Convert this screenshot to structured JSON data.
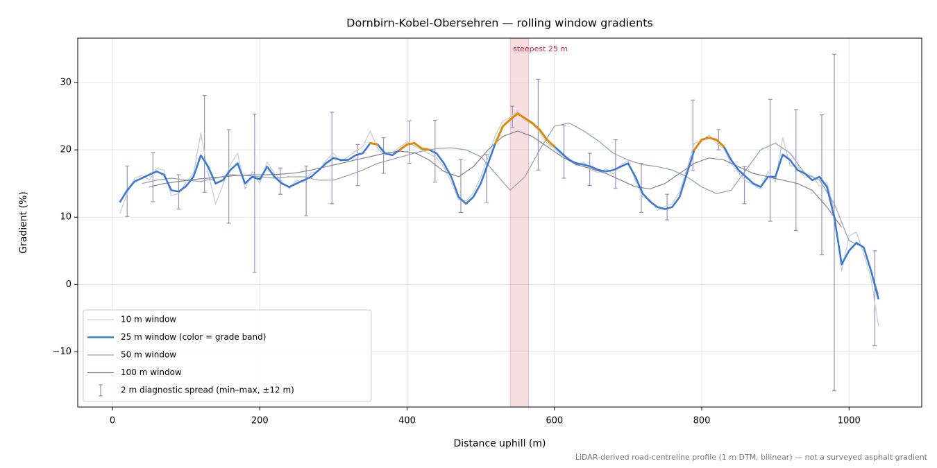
{
  "chart_data": {
    "type": "line",
    "title": "Dornbirn-Kobel-Obersehren — rolling window gradients",
    "xlabel": "Distance uphill (m)",
    "ylabel": "Gradient (%)",
    "footnote": "LiDAR-derived road-centreline profile (1 m DTM, bilinear) — not a surveyed asphalt gradient",
    "xlim": [
      -47.1,
      1098.7
    ],
    "ylim": [
      -18.2,
      36.6
    ],
    "xticks": [
      0,
      200,
      400,
      600,
      800,
      1000
    ],
    "yticks": [
      {
        "value": -10,
        "label": "−10"
      },
      0,
      10,
      20,
      30
    ],
    "grid": true,
    "legend": "lower left",
    "highlight": {
      "label": "steepest 25 m",
      "x": [
        540,
        565
      ],
      "color": "#e07a86"
    },
    "series": [
      {
        "name": "10 m window",
        "color": "#c6cdd6",
        "width": 1.3,
        "x": [
          10,
          20,
          30,
          40,
          50,
          60,
          70,
          80,
          90,
          100,
          110,
          120,
          130,
          140,
          150,
          160,
          170,
          180,
          190,
          200,
          210,
          220,
          230,
          240,
          250,
          260,
          270,
          280,
          290,
          300,
          310,
          320,
          330,
          340,
          350,
          360,
          370,
          380,
          390,
          400,
          410,
          420,
          430,
          440,
          450,
          460,
          470,
          480,
          490,
          500,
          510,
          520,
          530,
          540,
          550,
          560,
          570,
          580,
          590,
          600,
          610,
          620,
          630,
          640,
          650,
          660,
          670,
          680,
          690,
          700,
          710,
          720,
          730,
          740,
          750,
          760,
          770,
          780,
          790,
          800,
          810,
          820,
          830,
          840,
          850,
          860,
          870,
          880,
          890,
          900,
          910,
          920,
          930,
          940,
          950,
          960,
          970,
          980,
          990,
          1000,
          1010,
          1020,
          1030,
          1040
        ],
        "values": [
          10.5,
          13.5,
          15.8,
          16.2,
          15.5,
          17.2,
          17,
          13.2,
          13.5,
          15.2,
          16.5,
          22.5,
          16.5,
          12,
          14.8,
          17.8,
          19.5,
          14.2,
          16.8,
          15,
          18.2,
          16.5,
          15.3,
          14.2,
          15.5,
          15.2,
          16.6,
          16.8,
          18.4,
          19.5,
          18.2,
          19,
          19.8,
          20.5,
          22.8,
          20.2,
          19.2,
          19.6,
          20.4,
          21.2,
          20.6,
          20,
          19.4,
          18.8,
          17.4,
          15.2,
          12.6,
          12.4,
          13.6,
          16,
          19,
          22.2,
          24.3,
          24.8,
          25.8,
          24.4,
          23.8,
          22.6,
          21,
          20.2,
          19.2,
          18.8,
          17.6,
          18.2,
          17,
          16.6,
          17.2,
          16.4,
          17.8,
          18.4,
          15.4,
          13,
          12.6,
          11,
          11.6,
          12,
          13.8,
          17.2,
          21,
          21.4,
          22.2,
          21,
          20.2,
          18,
          16.6,
          15.4,
          14.8,
          14.2,
          16.8,
          15.2,
          21.8,
          17.6,
          17.6,
          15.8,
          16.2,
          14.6,
          15.2,
          11,
          2,
          7.2,
          7.8,
          4.6,
          0.8,
          -6.2
        ]
      },
      {
        "name": "25 m window (color = grade band)",
        "color": "#3a78d8",
        "width": 2.6,
        "bands": [
          {
            "min": 20,
            "color": "#e08a00"
          },
          {
            "min": 25,
            "color": "#c8202a"
          }
        ],
        "x": [
          10,
          20,
          30,
          40,
          50,
          60,
          70,
          80,
          90,
          100,
          110,
          120,
          130,
          140,
          150,
          160,
          170,
          180,
          190,
          200,
          210,
          220,
          230,
          240,
          250,
          260,
          270,
          280,
          290,
          300,
          310,
          320,
          330,
          340,
          350,
          360,
          370,
          380,
          390,
          400,
          410,
          420,
          430,
          440,
          450,
          460,
          470,
          480,
          490,
          500,
          510,
          520,
          530,
          540,
          550,
          560,
          570,
          580,
          590,
          600,
          610,
          620,
          630,
          640,
          650,
          660,
          670,
          680,
          690,
          700,
          710,
          720,
          730,
          740,
          750,
          760,
          770,
          780,
          790,
          800,
          810,
          820,
          830,
          840,
          850,
          860,
          870,
          880,
          890,
          900,
          910,
          920,
          930,
          940,
          950,
          960,
          970,
          980,
          990,
          1000,
          1010,
          1020,
          1030,
          1040
        ],
        "values": [
          12.2,
          14,
          15.3,
          15.8,
          16.3,
          16.8,
          16.3,
          14,
          13.8,
          14.6,
          16,
          19.2,
          17.5,
          15,
          15.5,
          17,
          18,
          15,
          16,
          15.6,
          17.5,
          16,
          15,
          14.5,
          15,
          15.5,
          16,
          17,
          18,
          18.8,
          18.5,
          18.5,
          19.2,
          19.5,
          21,
          20.8,
          19.5,
          19.2,
          20,
          20.8,
          21,
          20.2,
          20,
          19.5,
          18,
          16,
          13,
          12,
          13,
          15,
          18,
          21,
          23.5,
          24.5,
          25.4,
          24.7,
          24,
          23,
          21.5,
          20.5,
          19.5,
          18.5,
          18,
          17.8,
          17.5,
          17,
          16.8,
          17,
          17.5,
          18,
          16,
          13.5,
          12.3,
          11.5,
          11.2,
          11.5,
          13,
          16.5,
          20,
          21.5,
          21.8,
          21.5,
          20.5,
          18.5,
          17,
          16,
          15,
          14.5,
          16,
          16,
          19.3,
          18.5,
          17,
          16.5,
          15.5,
          16,
          14.5,
          10,
          3,
          5,
          6.2,
          5.5,
          2,
          -2.2
        ]
      },
      {
        "name": "50 m window",
        "color": "#9aa2b4",
        "width": 1.3,
        "x": [
          40,
          60,
          80,
          100,
          120,
          140,
          160,
          180,
          200,
          220,
          240,
          260,
          280,
          300,
          320,
          340,
          360,
          380,
          400,
          420,
          440,
          460,
          480,
          500,
          520,
          540,
          560,
          580,
          600,
          620,
          640,
          660,
          680,
          700,
          720,
          740,
          760,
          780,
          800,
          820,
          840,
          860,
          880,
          900,
          920,
          940,
          960,
          980,
          1000,
          1020,
          1040
        ],
        "values": [
          15,
          15.5,
          15.8,
          15.5,
          15.3,
          15.8,
          16.3,
          16.2,
          16,
          15.8,
          16,
          16,
          15.5,
          15.5,
          16.2,
          17,
          18,
          18.6,
          19.2,
          19.8,
          20.2,
          20.3,
          20,
          19,
          16.5,
          14,
          16,
          20,
          23.5,
          24,
          22.8,
          21.3,
          19.5,
          18.5,
          17.8,
          17.5,
          17,
          16,
          14.5,
          13.5,
          14,
          17,
          20,
          21,
          19.5,
          16.5,
          15.5,
          12,
          6.5,
          5.5,
          -1.5
        ]
      },
      {
        "name": "100 m window",
        "color": "#7d828e",
        "width": 1.2,
        "x": [
          50,
          70,
          90,
          110,
          130,
          150,
          170,
          190,
          210,
          230,
          250,
          270,
          290,
          310,
          330,
          350,
          370,
          390,
          410,
          430,
          450,
          470,
          490,
          510,
          530,
          550,
          570,
          590,
          610,
          630,
          650,
          670,
          690,
          710,
          730,
          750,
          770,
          790,
          810,
          830,
          850,
          870,
          890,
          910,
          930,
          950,
          970,
          990
        ],
        "values": [
          14.5,
          15,
          15.3,
          15.6,
          15.8,
          16,
          16.2,
          16.3,
          16.3,
          16.4,
          16.6,
          17,
          17.5,
          18,
          18.5,
          19,
          19.5,
          19.8,
          19.6,
          18.5,
          16.8,
          16,
          17.5,
          20,
          22,
          22.8,
          22,
          20.5,
          19,
          17.8,
          17.2,
          16.5,
          15.5,
          14.5,
          14.2,
          15,
          16.5,
          18,
          18.8,
          18.5,
          17.5,
          16.5,
          16,
          15.5,
          15,
          14,
          11.5,
          8.5
        ]
      }
    ],
    "spread": {
      "name": "2 m diagnostic spread (min–max, ±12 m)",
      "color": "#9890b8",
      "x": [
        20,
        55,
        90,
        125,
        158,
        193,
        228,
        263,
        298,
        333,
        368,
        403,
        438,
        473,
        508,
        543,
        578,
        613,
        648,
        683,
        718,
        753,
        788,
        823,
        858,
        893,
        928,
        963,
        980,
        1035
      ],
      "low": [
        10.1,
        12.3,
        11.2,
        13.7,
        9.1,
        1.8,
        13.4,
        10.2,
        12,
        14.7,
        16.5,
        18,
        15.2,
        10.7,
        12.2,
        23.3,
        17,
        15.8,
        14.7,
        14.3,
        10.7,
        9.6,
        17,
        20,
        12,
        9.4,
        8,
        4.4,
        -15.8,
        -9.1
      ],
      "high": [
        17.6,
        19.6,
        16.3,
        28.1,
        23,
        25.3,
        17.3,
        17.6,
        25.6,
        20.8,
        21.8,
        24.3,
        24.4,
        18.6,
        19.3,
        26.5,
        30.5,
        23.6,
        19.5,
        21.5,
        18,
        13.4,
        27.4,
        23,
        17.5,
        27.5,
        26,
        25.2,
        34.2,
        5
      ]
    }
  }
}
